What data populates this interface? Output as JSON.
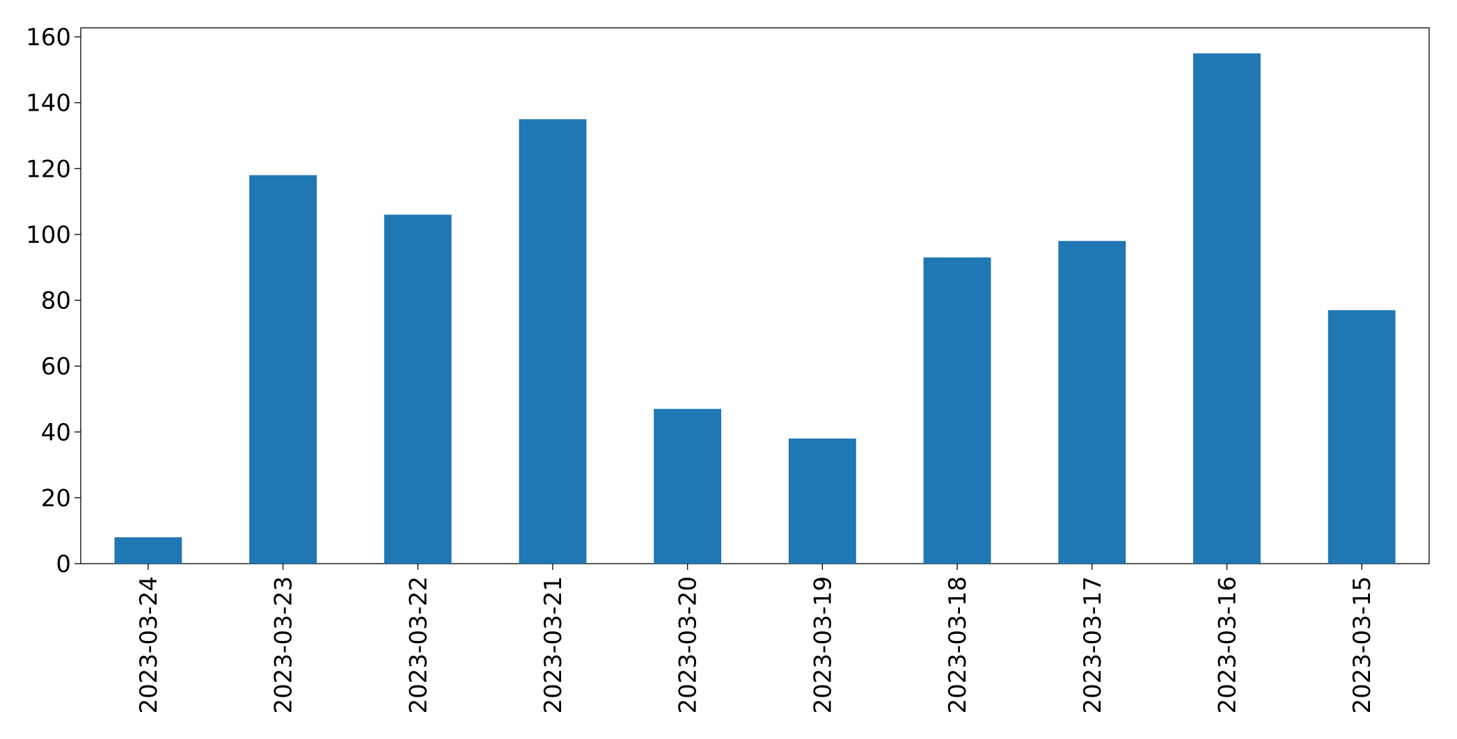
{
  "chart_data": {
    "type": "bar",
    "categories": [
      "2023-03-24",
      "2023-03-23",
      "2023-03-22",
      "2023-03-21",
      "2023-03-20",
      "2023-03-19",
      "2023-03-18",
      "2023-03-17",
      "2023-03-16",
      "2023-03-15"
    ],
    "values": [
      8,
      118,
      106,
      135,
      47,
      38,
      93,
      98,
      155,
      77
    ],
    "color": "#1f77b4",
    "ylim": [
      0,
      162.75
    ],
    "yticks": [
      0,
      20,
      40,
      60,
      80,
      100,
      120,
      140,
      160
    ],
    "grid": false
  }
}
